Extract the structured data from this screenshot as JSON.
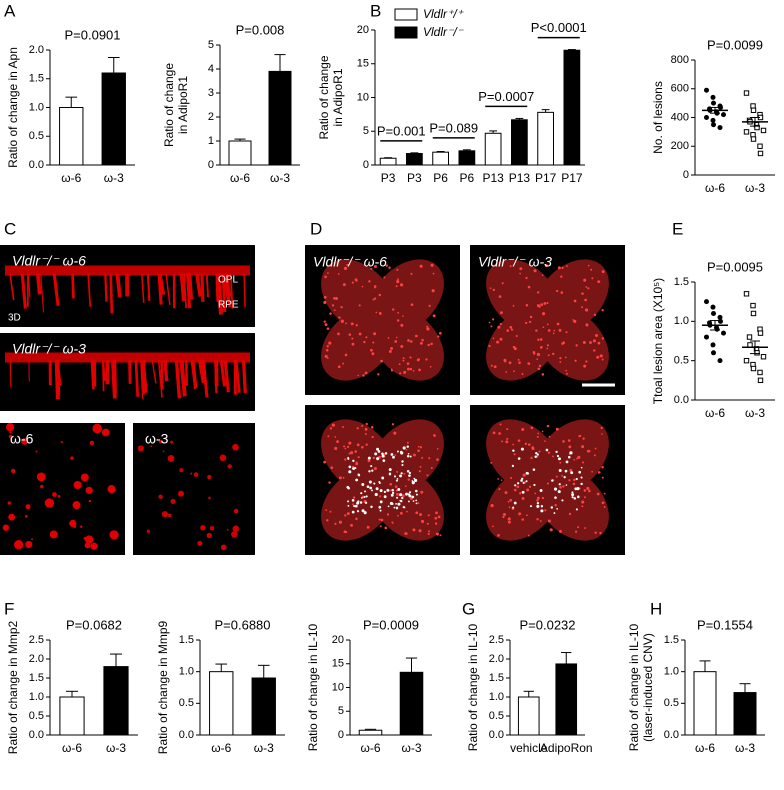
{
  "panels": [
    "A",
    "B",
    "C",
    "D",
    "E",
    "F",
    "G",
    "H"
  ],
  "images": {
    "C": [
      {
        "label": "Vldlr⁻/⁻ ω-6",
        "notes": [
          "OPL",
          "RPE",
          "3D"
        ]
      },
      {
        "label": "Vldlr⁻/⁻ ω-3"
      },
      {
        "label": "ω-6"
      },
      {
        "label": "ω-3"
      }
    ],
    "D": [
      {
        "label": "Vldlr⁻/⁻ ω-6"
      },
      {
        "label": "Vldlr⁻/⁻ ω-3"
      }
    ]
  },
  "chart_data": [
    {
      "type": "bar",
      "ylabel": [
        "Ratio of change in Apn"
      ],
      "annotation": "P=0.0901",
      "categories": [
        "ω-6",
        "ω-3"
      ],
      "values": [
        1.0,
        1.6
      ],
      "errors": [
        0.18,
        0.27
      ],
      "colors": [
        "#ffffff",
        "#000000"
      ],
      "ylim": [
        0,
        2
      ],
      "yticks": [
        {
          "value": 0,
          "label": "0.0"
        },
        {
          "value": 0.5,
          "label": "0.5"
        },
        {
          "value": 1,
          "label": "1.0"
        },
        {
          "value": 1.5,
          "label": "1.5"
        },
        {
          "value": 2,
          "label": "2.0"
        }
      ]
    },
    {
      "type": "bar",
      "ylabel": [
        "Ratio of change",
        "in AdipoR1"
      ],
      "annotation": "P=0.008",
      "categories": [
        "ω-6",
        "ω-3"
      ],
      "values": [
        1.0,
        3.9
      ],
      "errors": [
        0.08,
        0.7
      ],
      "colors": [
        "#ffffff",
        "#000000"
      ],
      "ylim": [
        0,
        5
      ],
      "yticks": [
        0,
        1,
        2,
        3,
        4,
        5
      ]
    },
    {
      "type": "groupbar",
      "ylabel": [
        "Ratio of change",
        "in AdipoR1"
      ],
      "annotations": [
        "P=0.001",
        "P=0.089",
        "P=0.0007",
        "P<0.0001"
      ],
      "categories": [
        "P3",
        "P3",
        "P6",
        "P6",
        "P13",
        "P13",
        "P17",
        "P17"
      ],
      "series": [
        {
          "name": "Vldlr⁺/⁺",
          "color": "#ffffff",
          "values": [
            1.0,
            null,
            1.9,
            null,
            4.7,
            null,
            7.8,
            null
          ],
          "errors": [
            0.08,
            null,
            0.1,
            null,
            0.35,
            null,
            0.4,
            null
          ]
        },
        {
          "name": "Vldlr⁻/⁻",
          "color": "#000000",
          "values": [
            null,
            1.7,
            null,
            2.1,
            null,
            6.7,
            null,
            17.0
          ],
          "errors": [
            null,
            0.1,
            null,
            0.15,
            null,
            0.2,
            null,
            0.1
          ]
        }
      ],
      "ylim": [
        0,
        20
      ],
      "yticks": [
        0,
        5,
        10,
        15,
        20
      ]
    },
    {
      "type": "scatter",
      "ylabel": [
        "No. of lesions"
      ],
      "annotation": "P=0.0099",
      "categories": [
        "ω-6",
        "ω-3"
      ],
      "series": [
        {
          "color": "#000000",
          "filled": true,
          "values": [
            590,
            540,
            500,
            480,
            470,
            460,
            450,
            440,
            430,
            420,
            400,
            380,
            350,
            330
          ],
          "mean": 450,
          "sem": 20
        },
        {
          "color": "#000000",
          "filled": false,
          "values": [
            570,
            480,
            450,
            420,
            400,
            380,
            370,
            350,
            330,
            310,
            300,
            280,
            250,
            200,
            150
          ],
          "mean": 370,
          "sem": 30
        }
      ],
      "ylim": [
        0,
        800
      ],
      "yticks": [
        0,
        200,
        400,
        600,
        800
      ]
    },
    {
      "type": "scatter",
      "ylabel": [
        "Ttoal lesion area (X10⁵)"
      ],
      "annotation": "P=0.0095",
      "categories": [
        "ω-6",
        "ω-3"
      ],
      "series": [
        {
          "color": "#000000",
          "filled": true,
          "values": [
            1.25,
            1.18,
            1.1,
            1.05,
            1.0,
            0.98,
            0.95,
            0.92,
            0.9,
            0.85,
            0.8,
            0.7,
            0.6,
            0.5
          ],
          "mean": 0.95,
          "sem": 0.06
        },
        {
          "color": "#000000",
          "filled": false,
          "values": [
            1.35,
            1.2,
            1.1,
            0.9,
            0.85,
            0.8,
            0.7,
            0.65,
            0.6,
            0.55,
            0.5,
            0.45,
            0.4,
            0.35,
            0.25
          ],
          "mean": 0.67,
          "sem": 0.08
        }
      ],
      "ylim": [
        0,
        1.5
      ],
      "yticks": [
        {
          "value": 0,
          "label": "0.0"
        },
        {
          "value": 0.5,
          "label": "0.5"
        },
        {
          "value": 1,
          "label": "1.0"
        },
        {
          "value": 1.5,
          "label": "1.5"
        }
      ]
    },
    {
      "type": "bar",
      "ylabel": [
        "Ratio of change in Mmp2"
      ],
      "annotation": "P=0.0682",
      "categories": [
        "ω-6",
        "ω-3"
      ],
      "values": [
        1.0,
        1.8
      ],
      "errors": [
        0.15,
        0.33
      ],
      "colors": [
        "#ffffff",
        "#000000"
      ],
      "ylim": [
        0,
        2.5
      ],
      "yticks": [
        {
          "value": 0,
          "label": "0.0"
        },
        {
          "value": 0.5,
          "label": "0.5"
        },
        {
          "value": 1,
          "label": "1.0"
        },
        {
          "value": 1.5,
          "label": "1.5"
        },
        {
          "value": 2,
          "label": "2.0"
        },
        {
          "value": 2.5,
          "label": "2.5"
        }
      ]
    },
    {
      "type": "bar",
      "ylabel": [
        "Ratio of change in Mmp9"
      ],
      "annotation": "P=0.6880",
      "categories": [
        "ω-6",
        "ω-3"
      ],
      "values": [
        1.0,
        0.9
      ],
      "errors": [
        0.12,
        0.2
      ],
      "colors": [
        "#ffffff",
        "#000000"
      ],
      "ylim": [
        0,
        1.5
      ],
      "yticks": [
        {
          "value": 0,
          "label": "0.0"
        },
        {
          "value": 0.5,
          "label": "0.5"
        },
        {
          "value": 1,
          "label": "1.0"
        },
        {
          "value": 1.5,
          "label": "1.5"
        }
      ]
    },
    {
      "type": "bar",
      "ylabel": [
        "Ratio of change in IL-10"
      ],
      "annotation": "P=0.0009",
      "categories": [
        "ω-6",
        "ω-3"
      ],
      "values": [
        1.0,
        13.2
      ],
      "errors": [
        0.2,
        3.0
      ],
      "colors": [
        "#ffffff",
        "#000000"
      ],
      "ylim": [
        0,
        20
      ],
      "yticks": [
        0,
        5,
        10,
        15,
        20
      ]
    },
    {
      "type": "bar",
      "ylabel": [
        "Ratio of change in IL-10"
      ],
      "annotation": "P=0.0232",
      "categories": [
        "vehicle",
        "AdipoRon"
      ],
      "values": [
        1.0,
        1.87
      ],
      "errors": [
        0.15,
        0.3
      ],
      "colors": [
        "#ffffff",
        "#000000"
      ],
      "ylim": [
        0,
        2.5
      ],
      "yticks": [
        {
          "value": 0,
          "label": "0.0"
        },
        {
          "value": 0.5,
          "label": "0.5"
        },
        {
          "value": 1,
          "label": "1.0"
        },
        {
          "value": 1.5,
          "label": "1.5"
        },
        {
          "value": 2,
          "label": "2.0"
        },
        {
          "value": 2.5,
          "label": "2.5"
        }
      ]
    },
    {
      "type": "bar",
      "ylabel": [
        "Ratio of change in IL-10",
        "(laser-induced CNV)"
      ],
      "annotation": "P=0.1554",
      "categories": [
        "ω-6",
        "ω-3"
      ],
      "values": [
        1.0,
        0.67
      ],
      "errors": [
        0.17,
        0.14
      ],
      "colors": [
        "#ffffff",
        "#000000"
      ],
      "ylim": [
        0,
        1.5
      ],
      "yticks": [
        {
          "value": 0,
          "label": "0.0"
        },
        {
          "value": 0.5,
          "label": "0.5"
        },
        {
          "value": 1,
          "label": "1.0"
        },
        {
          "value": 1.5,
          "label": "1.5"
        }
      ]
    }
  ]
}
